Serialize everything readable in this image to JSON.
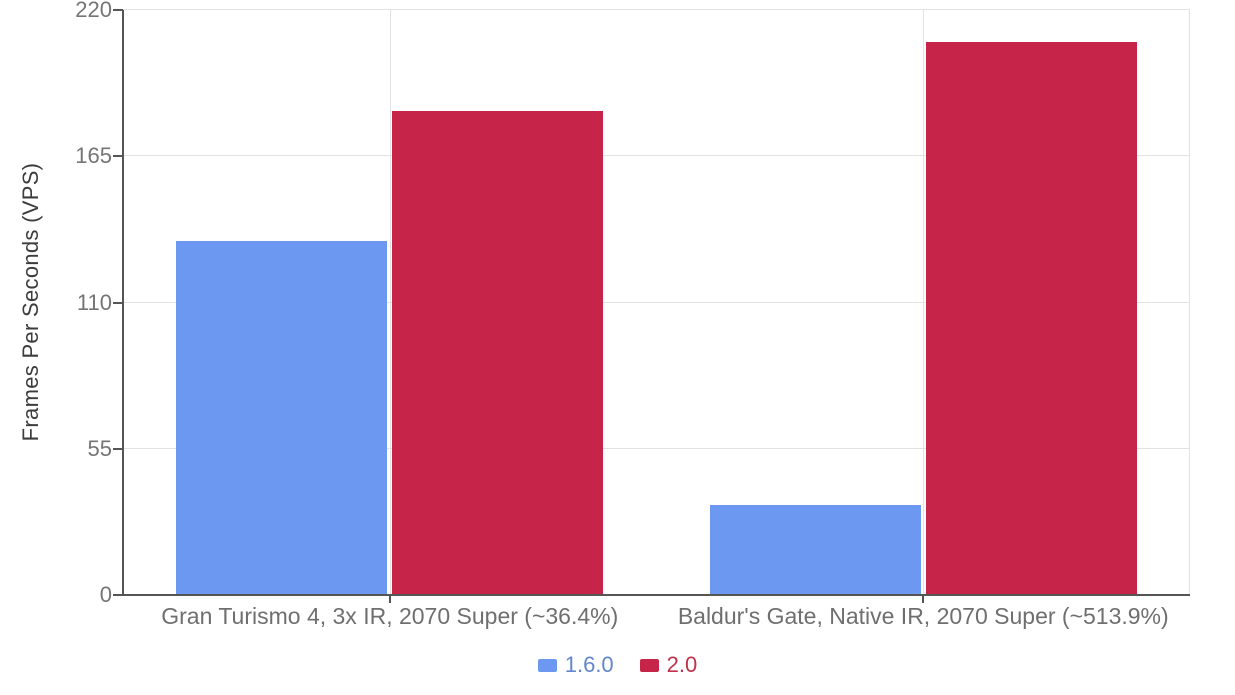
{
  "chart_data": {
    "type": "bar",
    "title": "",
    "xlabel": "",
    "ylabel": "Frames Per Seconds (VPS)",
    "categories": [
      "Gran Turismo 4, 3x IR, 2070 Super (~36.4%)",
      "Baldur's Gate, Native IR, 2070 Super (~513.9%)"
    ],
    "series": [
      {
        "name": "1.6.0",
        "color": "#6d98f2",
        "values": [
          133,
          34
        ]
      },
      {
        "name": "2.0",
        "color": "#c62448",
        "values": [
          182,
          208
        ]
      }
    ],
    "ylim": [
      0,
      220
    ],
    "yticks": [
      0,
      55,
      110,
      165,
      220
    ],
    "grid": true,
    "legend_position": "bottom"
  },
  "colors": {
    "background": "#ffffff",
    "grid": "#e2e2e2",
    "axis": "#555555",
    "tick_label": "#757575",
    "category_label": "#6f6f6f",
    "axis_title": "#3c3c3c",
    "legend_text_blue": "#6286cd",
    "legend_text_red": "#c0314b"
  }
}
